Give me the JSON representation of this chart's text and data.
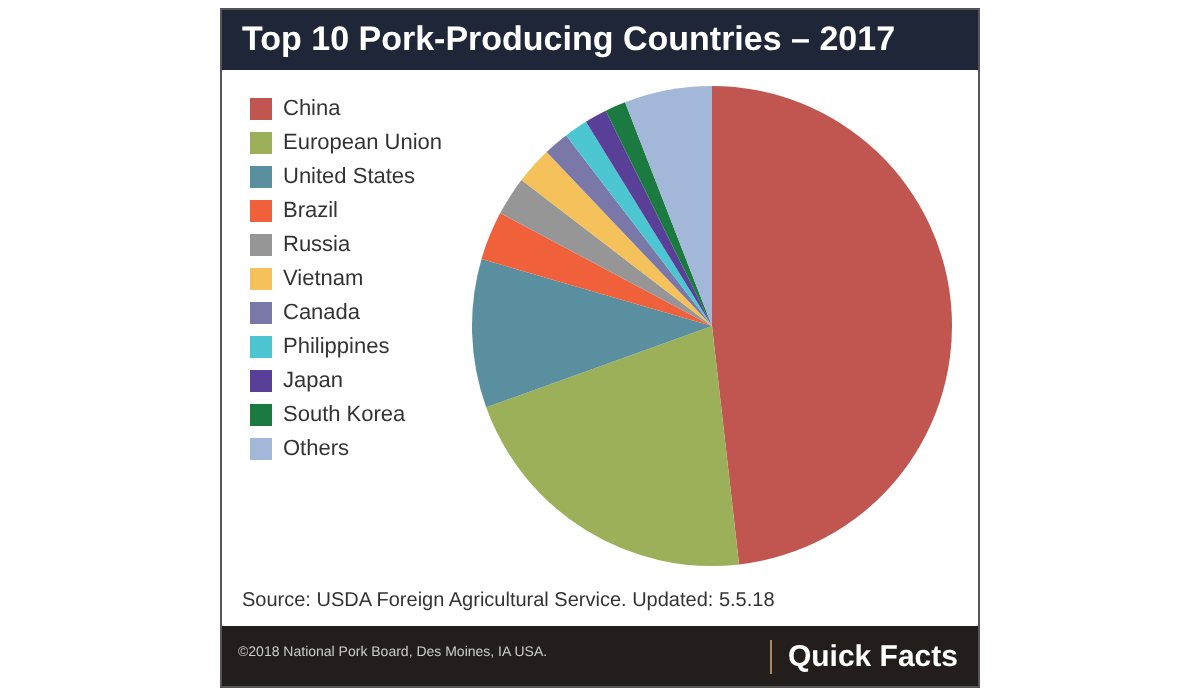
{
  "chart_data": {
    "type": "pie",
    "title": "Top 10 Pork-Producing Countries – 2017",
    "categories": [
      "China",
      "European Union",
      "United States",
      "Brazil",
      "Russia",
      "Vietnam",
      "Canada",
      "Philippines",
      "Japan",
      "South Korea",
      "Others"
    ],
    "values": [
      48.2,
      21.3,
      10,
      3.3,
      2.6,
      2.5,
      1.7,
      1.6,
      1.5,
      1.4,
      5.9
    ],
    "colors": [
      "#c0564f",
      "#9cb05a",
      "#5a8fa0",
      "#f0603a",
      "#969696",
      "#f5c15a",
      "#7a78a8",
      "#4cc6d0",
      "#5a3f98",
      "#1a7a40",
      "#a3b7d8"
    ],
    "legend": "left",
    "annotations": [
      "Source: USDA Foreign Agricultural Service. Updated: 5.5.18",
      "©2018 National Pork Board, Des Moines, IA USA.",
      "Quick Facts"
    ]
  }
}
